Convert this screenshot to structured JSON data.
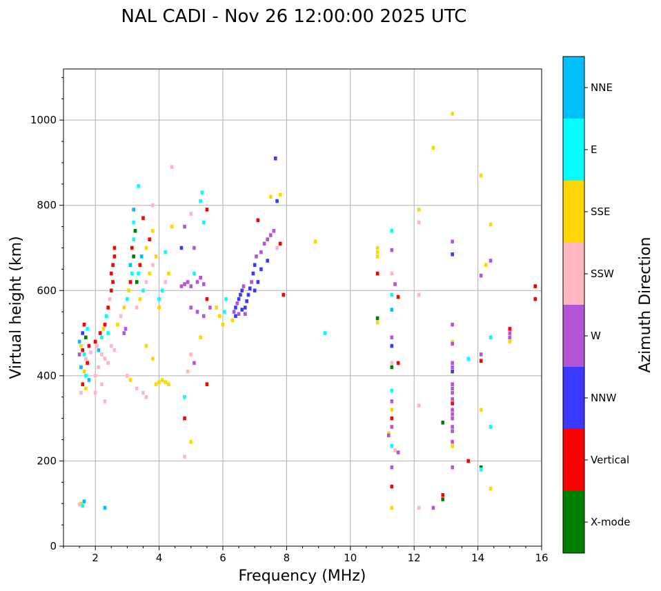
{
  "chart_data": {
    "type": "scatter",
    "title": "NAL CADI - Nov 26 12:00:00 2025 UTC",
    "xlabel": "Frequency (MHz)",
    "ylabel": "Virtual height (km)",
    "xlim": [
      1,
      16
    ],
    "ylim": [
      0,
      1120
    ],
    "xticks": [
      2,
      4,
      6,
      8,
      10,
      12,
      14,
      16
    ],
    "yticks": [
      0,
      200,
      400,
      600,
      800,
      1000
    ],
    "grid": true,
    "colorbar": {
      "title": "Azimuth Direction",
      "categories": [
        "X-mode",
        "Vertical",
        "NNW",
        "W",
        "SSW",
        "SSE",
        "E",
        "NNE"
      ],
      "colors": [
        "#008000",
        "#ff0000",
        "#3a3aff",
        "#b355d6",
        "#ffb6c1",
        "#ffd700",
        "#00ffff",
        "#00bfff"
      ]
    },
    "points": [
      {
        "f": 1.55,
        "h": 100,
        "c": 5
      },
      {
        "f": 1.6,
        "h": 95,
        "c": 6
      },
      {
        "f": 1.65,
        "h": 105,
        "c": 7
      },
      {
        "f": 1.5,
        "h": 98,
        "c": 4
      },
      {
        "f": 2.3,
        "h": 90,
        "c": 7
      },
      {
        "f": 1.5,
        "h": 480,
        "c": 7
      },
      {
        "f": 1.55,
        "h": 470,
        "c": 5
      },
      {
        "f": 1.6,
        "h": 460,
        "c": 1
      },
      {
        "f": 1.65,
        "h": 450,
        "c": 6
      },
      {
        "f": 1.7,
        "h": 440,
        "c": 4
      },
      {
        "f": 1.75,
        "h": 430,
        "c": 1
      },
      {
        "f": 1.6,
        "h": 500,
        "c": 2
      },
      {
        "f": 1.7,
        "h": 490,
        "c": 0
      },
      {
        "f": 1.8,
        "h": 470,
        "c": 1
      },
      {
        "f": 1.55,
        "h": 420,
        "c": 7
      },
      {
        "f": 1.65,
        "h": 410,
        "c": 5
      },
      {
        "f": 1.5,
        "h": 450,
        "c": 3
      },
      {
        "f": 1.75,
        "h": 510,
        "c": 6
      },
      {
        "f": 1.6,
        "h": 380,
        "c": 1
      },
      {
        "f": 1.7,
        "h": 370,
        "c": 5
      },
      {
        "f": 1.55,
        "h": 360,
        "c": 4
      },
      {
        "f": 1.8,
        "h": 390,
        "c": 7
      },
      {
        "f": 1.65,
        "h": 520,
        "c": 1
      },
      {
        "f": 1.85,
        "h": 455,
        "c": 4
      },
      {
        "f": 1.7,
        "h": 400,
        "c": 6
      },
      {
        "f": 2.0,
        "h": 480,
        "c": 1
      },
      {
        "f": 2.05,
        "h": 470,
        "c": 4
      },
      {
        "f": 2.1,
        "h": 460,
        "c": 7
      },
      {
        "f": 2.15,
        "h": 500,
        "c": 1
      },
      {
        "f": 2.2,
        "h": 490,
        "c": 6
      },
      {
        "f": 2.25,
        "h": 510,
        "c": 5
      },
      {
        "f": 2.3,
        "h": 520,
        "c": 1
      },
      {
        "f": 2.35,
        "h": 540,
        "c": 6
      },
      {
        "f": 2.4,
        "h": 560,
        "c": 1
      },
      {
        "f": 2.45,
        "h": 580,
        "c": 4
      },
      {
        "f": 2.5,
        "h": 600,
        "c": 1
      },
      {
        "f": 2.55,
        "h": 620,
        "c": 1
      },
      {
        "f": 2.5,
        "h": 640,
        "c": 1
      },
      {
        "f": 2.55,
        "h": 660,
        "c": 1
      },
      {
        "f": 2.6,
        "h": 680,
        "c": 1
      },
      {
        "f": 2.6,
        "h": 700,
        "c": 1
      },
      {
        "f": 2.2,
        "h": 450,
        "c": 4
      },
      {
        "f": 2.3,
        "h": 440,
        "c": 4
      },
      {
        "f": 2.4,
        "h": 430,
        "c": 4
      },
      {
        "f": 2.5,
        "h": 470,
        "c": 4
      },
      {
        "f": 2.6,
        "h": 460,
        "c": 4
      },
      {
        "f": 2.1,
        "h": 420,
        "c": 4
      },
      {
        "f": 2.0,
        "h": 400,
        "c": 4
      },
      {
        "f": 2.2,
        "h": 380,
        "c": 4
      },
      {
        "f": 2.3,
        "h": 340,
        "c": 4
      },
      {
        "f": 2.0,
        "h": 360,
        "c": 4
      },
      {
        "f": 2.4,
        "h": 500,
        "c": 6
      },
      {
        "f": 2.7,
        "h": 520,
        "c": 5
      },
      {
        "f": 2.8,
        "h": 540,
        "c": 4
      },
      {
        "f": 2.9,
        "h": 560,
        "c": 5
      },
      {
        "f": 2.9,
        "h": 500,
        "c": 3
      },
      {
        "f": 2.95,
        "h": 510,
        "c": 3
      },
      {
        "f": 3.0,
        "h": 580,
        "c": 6
      },
      {
        "f": 3.05,
        "h": 600,
        "c": 5
      },
      {
        "f": 3.1,
        "h": 620,
        "c": 1
      },
      {
        "f": 3.15,
        "h": 640,
        "c": 6
      },
      {
        "f": 3.1,
        "h": 660,
        "c": 7
      },
      {
        "f": 3.2,
        "h": 680,
        "c": 0
      },
      {
        "f": 3.15,
        "h": 700,
        "c": 1
      },
      {
        "f": 3.2,
        "h": 720,
        "c": 6
      },
      {
        "f": 3.25,
        "h": 740,
        "c": 0
      },
      {
        "f": 3.2,
        "h": 760,
        "c": 6
      },
      {
        "f": 3.2,
        "h": 790,
        "c": 7
      },
      {
        "f": 3.35,
        "h": 845,
        "c": 6
      },
      {
        "f": 3.3,
        "h": 560,
        "c": 4
      },
      {
        "f": 3.4,
        "h": 580,
        "c": 5
      },
      {
        "f": 3.5,
        "h": 600,
        "c": 6
      },
      {
        "f": 3.6,
        "h": 620,
        "c": 4
      },
      {
        "f": 3.7,
        "h": 640,
        "c": 5
      },
      {
        "f": 3.8,
        "h": 660,
        "c": 4
      },
      {
        "f": 3.9,
        "h": 680,
        "c": 5
      },
      {
        "f": 3.6,
        "h": 700,
        "c": 5
      },
      {
        "f": 3.7,
        "h": 720,
        "c": 1
      },
      {
        "f": 3.8,
        "h": 740,
        "c": 5
      },
      {
        "f": 3.5,
        "h": 770,
        "c": 1
      },
      {
        "f": 3.8,
        "h": 800,
        "c": 4
      },
      {
        "f": 3.3,
        "h": 620,
        "c": 0
      },
      {
        "f": 3.35,
        "h": 640,
        "c": 6
      },
      {
        "f": 3.4,
        "h": 660,
        "c": 1
      },
      {
        "f": 3.45,
        "h": 680,
        "c": 7
      },
      {
        "f": 3.0,
        "h": 400,
        "c": 4
      },
      {
        "f": 3.1,
        "h": 390,
        "c": 5
      },
      {
        "f": 3.3,
        "h": 370,
        "c": 4
      },
      {
        "f": 3.5,
        "h": 360,
        "c": 4
      },
      {
        "f": 3.6,
        "h": 350,
        "c": 4
      },
      {
        "f": 3.8,
        "h": 440,
        "c": 5
      },
      {
        "f": 3.9,
        "h": 380,
        "c": 5
      },
      {
        "f": 4.0,
        "h": 385,
        "c": 5
      },
      {
        "f": 4.1,
        "h": 390,
        "c": 5
      },
      {
        "f": 4.2,
        "h": 385,
        "c": 5
      },
      {
        "f": 4.3,
        "h": 380,
        "c": 5
      },
      {
        "f": 3.6,
        "h": 470,
        "c": 5
      },
      {
        "f": 4.0,
        "h": 580,
        "c": 6
      },
      {
        "f": 4.1,
        "h": 600,
        "c": 6
      },
      {
        "f": 4.2,
        "h": 620,
        "c": 4
      },
      {
        "f": 4.3,
        "h": 640,
        "c": 5
      },
      {
        "f": 4.0,
        "h": 560,
        "c": 5
      },
      {
        "f": 4.2,
        "h": 690,
        "c": 6
      },
      {
        "f": 4.4,
        "h": 750,
        "c": 5
      },
      {
        "f": 4.4,
        "h": 890,
        "c": 4
      },
      {
        "f": 4.7,
        "h": 610,
        "c": 3
      },
      {
        "f": 4.8,
        "h": 615,
        "c": 3
      },
      {
        "f": 4.9,
        "h": 620,
        "c": 3
      },
      {
        "f": 5.0,
        "h": 610,
        "c": 3
      },
      {
        "f": 5.1,
        "h": 640,
        "c": 6
      },
      {
        "f": 5.2,
        "h": 620,
        "c": 3
      },
      {
        "f": 5.3,
        "h": 630,
        "c": 3
      },
      {
        "f": 5.4,
        "h": 615,
        "c": 3
      },
      {
        "f": 5.1,
        "h": 700,
        "c": 3
      },
      {
        "f": 4.8,
        "h": 750,
        "c": 3
      },
      {
        "f": 5.0,
        "h": 780,
        "c": 4
      },
      {
        "f": 5.3,
        "h": 810,
        "c": 6
      },
      {
        "f": 5.5,
        "h": 790,
        "c": 1
      },
      {
        "f": 5.35,
        "h": 830,
        "c": 6
      },
      {
        "f": 4.7,
        "h": 700,
        "c": 2
      },
      {
        "f": 5.4,
        "h": 760,
        "c": 6
      },
      {
        "f": 5.0,
        "h": 560,
        "c": 3
      },
      {
        "f": 5.2,
        "h": 550,
        "c": 3
      },
      {
        "f": 5.4,
        "h": 540,
        "c": 3
      },
      {
        "f": 5.6,
        "h": 560,
        "c": 3
      },
      {
        "f": 5.5,
        "h": 580,
        "c": 1
      },
      {
        "f": 5.8,
        "h": 560,
        "c": 5
      },
      {
        "f": 5.9,
        "h": 540,
        "c": 5
      },
      {
        "f": 6.0,
        "h": 520,
        "c": 5
      },
      {
        "f": 6.05,
        "h": 550,
        "c": 6
      },
      {
        "f": 6.1,
        "h": 580,
        "c": 6
      },
      {
        "f": 5.3,
        "h": 490,
        "c": 5
      },
      {
        "f": 5.1,
        "h": 430,
        "c": 3
      },
      {
        "f": 4.9,
        "h": 410,
        "c": 4
      },
      {
        "f": 5.0,
        "h": 450,
        "c": 4
      },
      {
        "f": 4.8,
        "h": 350,
        "c": 6
      },
      {
        "f": 5.5,
        "h": 380,
        "c": 1
      },
      {
        "f": 4.8,
        "h": 300,
        "c": 1
      },
      {
        "f": 5.0,
        "h": 245,
        "c": 5
      },
      {
        "f": 4.8,
        "h": 210,
        "c": 4
      },
      {
        "f": 6.3,
        "h": 530,
        "c": 5
      },
      {
        "f": 6.35,
        "h": 550,
        "c": 3
      },
      {
        "f": 6.4,
        "h": 560,
        "c": 2
      },
      {
        "f": 6.45,
        "h": 570,
        "c": 3
      },
      {
        "f": 6.5,
        "h": 580,
        "c": 2
      },
      {
        "f": 6.55,
        "h": 590,
        "c": 2
      },
      {
        "f": 6.6,
        "h": 600,
        "c": 2
      },
      {
        "f": 6.65,
        "h": 610,
        "c": 3
      },
      {
        "f": 6.7,
        "h": 560,
        "c": 2
      },
      {
        "f": 6.75,
        "h": 575,
        "c": 2
      },
      {
        "f": 6.8,
        "h": 590,
        "c": 2
      },
      {
        "f": 6.85,
        "h": 605,
        "c": 2
      },
      {
        "f": 6.9,
        "h": 620,
        "c": 3
      },
      {
        "f": 6.95,
        "h": 640,
        "c": 2
      },
      {
        "f": 7.0,
        "h": 660,
        "c": 2
      },
      {
        "f": 7.05,
        "h": 680,
        "c": 3
      },
      {
        "f": 6.4,
        "h": 540,
        "c": 2
      },
      {
        "f": 6.5,
        "h": 545,
        "c": 3
      },
      {
        "f": 6.6,
        "h": 555,
        "c": 2
      },
      {
        "f": 6.7,
        "h": 545,
        "c": 3
      },
      {
        "f": 7.0,
        "h": 600,
        "c": 2
      },
      {
        "f": 7.1,
        "h": 620,
        "c": 2
      },
      {
        "f": 7.2,
        "h": 690,
        "c": 3
      },
      {
        "f": 7.3,
        "h": 710,
        "c": 3
      },
      {
        "f": 7.4,
        "h": 720,
        "c": 3
      },
      {
        "f": 7.5,
        "h": 730,
        "c": 3
      },
      {
        "f": 7.6,
        "h": 740,
        "c": 3
      },
      {
        "f": 7.7,
        "h": 700,
        "c": 4
      },
      {
        "f": 7.8,
        "h": 710,
        "c": 1
      },
      {
        "f": 7.1,
        "h": 765,
        "c": 1
      },
      {
        "f": 7.5,
        "h": 820,
        "c": 5
      },
      {
        "f": 7.7,
        "h": 810,
        "c": 2
      },
      {
        "f": 7.8,
        "h": 825,
        "c": 5
      },
      {
        "f": 7.65,
        "h": 910,
        "c": 2
      },
      {
        "f": 7.9,
        "h": 590,
        "c": 1
      },
      {
        "f": 8.9,
        "h": 715,
        "c": 5
      },
      {
        "f": 9.2,
        "h": 500,
        "c": 6
      },
      {
        "f": 7.4,
        "h": 670,
        "c": 2
      },
      {
        "f": 7.2,
        "h": 650,
        "c": 2
      },
      {
        "f": 10.85,
        "h": 700,
        "c": 5
      },
      {
        "f": 10.85,
        "h": 690,
        "c": 5
      },
      {
        "f": 10.85,
        "h": 680,
        "c": 5
      },
      {
        "f": 10.85,
        "h": 640,
        "c": 1
      },
      {
        "f": 10.85,
        "h": 535,
        "c": 0
      },
      {
        "f": 10.85,
        "h": 525,
        "c": 5
      },
      {
        "f": 11.3,
        "h": 740,
        "c": 6
      },
      {
        "f": 11.3,
        "h": 695,
        "c": 3
      },
      {
        "f": 11.3,
        "h": 640,
        "c": 4
      },
      {
        "f": 11.4,
        "h": 615,
        "c": 3
      },
      {
        "f": 11.3,
        "h": 590,
        "c": 6
      },
      {
        "f": 11.5,
        "h": 585,
        "c": 1
      },
      {
        "f": 11.3,
        "h": 555,
        "c": 7
      },
      {
        "f": 11.3,
        "h": 490,
        "c": 3
      },
      {
        "f": 11.3,
        "h": 470,
        "c": 2
      },
      {
        "f": 11.3,
        "h": 430,
        "c": 4
      },
      {
        "f": 11.3,
        "h": 420,
        "c": 0
      },
      {
        "f": 11.5,
        "h": 430,
        "c": 1
      },
      {
        "f": 11.3,
        "h": 365,
        "c": 6
      },
      {
        "f": 11.3,
        "h": 340,
        "c": 3
      },
      {
        "f": 11.3,
        "h": 320,
        "c": 5
      },
      {
        "f": 11.3,
        "h": 300,
        "c": 1
      },
      {
        "f": 11.3,
        "h": 280,
        "c": 3
      },
      {
        "f": 11.2,
        "h": 265,
        "c": 5
      },
      {
        "f": 11.2,
        "h": 260,
        "c": 3
      },
      {
        "f": 11.3,
        "h": 235,
        "c": 6
      },
      {
        "f": 11.4,
        "h": 225,
        "c": 4
      },
      {
        "f": 11.5,
        "h": 220,
        "c": 3
      },
      {
        "f": 11.3,
        "h": 185,
        "c": 3
      },
      {
        "f": 11.3,
        "h": 140,
        "c": 1
      },
      {
        "f": 11.3,
        "h": 90,
        "c": 5
      },
      {
        "f": 12.15,
        "h": 790,
        "c": 5
      },
      {
        "f": 12.15,
        "h": 760,
        "c": 4
      },
      {
        "f": 12.15,
        "h": 590,
        "c": 4
      },
      {
        "f": 12.15,
        "h": 330,
        "c": 4
      },
      {
        "f": 12.15,
        "h": 90,
        "c": 4
      },
      {
        "f": 12.6,
        "h": 935,
        "c": 5
      },
      {
        "f": 12.6,
        "h": 90,
        "c": 3
      },
      {
        "f": 13.2,
        "h": 1015,
        "c": 5
      },
      {
        "f": 13.2,
        "h": 715,
        "c": 3
      },
      {
        "f": 13.2,
        "h": 685,
        "c": 2
      },
      {
        "f": 13.2,
        "h": 520,
        "c": 3
      },
      {
        "f": 13.2,
        "h": 480,
        "c": 5
      },
      {
        "f": 13.2,
        "h": 475,
        "c": 3
      },
      {
        "f": 13.2,
        "h": 430,
        "c": 3
      },
      {
        "f": 13.2,
        "h": 420,
        "c": 3
      },
      {
        "f": 13.2,
        "h": 410,
        "c": 2
      },
      {
        "f": 13.2,
        "h": 380,
        "c": 3
      },
      {
        "f": 13.2,
        "h": 370,
        "c": 3
      },
      {
        "f": 13.2,
        "h": 360,
        "c": 3
      },
      {
        "f": 13.2,
        "h": 345,
        "c": 3
      },
      {
        "f": 13.2,
        "h": 335,
        "c": 1
      },
      {
        "f": 13.2,
        "h": 320,
        "c": 3
      },
      {
        "f": 13.2,
        "h": 310,
        "c": 3
      },
      {
        "f": 13.2,
        "h": 300,
        "c": 3
      },
      {
        "f": 13.2,
        "h": 280,
        "c": 3
      },
      {
        "f": 13.2,
        "h": 270,
        "c": 3
      },
      {
        "f": 13.2,
        "h": 245,
        "c": 3
      },
      {
        "f": 13.2,
        "h": 235,
        "c": 5
      },
      {
        "f": 13.2,
        "h": 185,
        "c": 3
      },
      {
        "f": 12.9,
        "h": 290,
        "c": 0
      },
      {
        "f": 12.9,
        "h": 120,
        "c": 1
      },
      {
        "f": 12.9,
        "h": 110,
        "c": 0
      },
      {
        "f": 13.7,
        "h": 440,
        "c": 6
      },
      {
        "f": 13.7,
        "h": 200,
        "c": 1
      },
      {
        "f": 14.1,
        "h": 870,
        "c": 5
      },
      {
        "f": 14.4,
        "h": 755,
        "c": 5
      },
      {
        "f": 14.4,
        "h": 670,
        "c": 3
      },
      {
        "f": 14.25,
        "h": 660,
        "c": 5
      },
      {
        "f": 14.1,
        "h": 635,
        "c": 3
      },
      {
        "f": 14.4,
        "h": 490,
        "c": 6
      },
      {
        "f": 14.1,
        "h": 450,
        "c": 3
      },
      {
        "f": 14.1,
        "h": 435,
        "c": 1
      },
      {
        "f": 14.1,
        "h": 320,
        "c": 5
      },
      {
        "f": 14.4,
        "h": 280,
        "c": 6
      },
      {
        "f": 14.1,
        "h": 185,
        "c": 0
      },
      {
        "f": 14.1,
        "h": 180,
        "c": 6
      },
      {
        "f": 14.4,
        "h": 135,
        "c": 5
      },
      {
        "f": 15.0,
        "h": 510,
        "c": 1
      },
      {
        "f": 15.0,
        "h": 500,
        "c": 3
      },
      {
        "f": 15.0,
        "h": 490,
        "c": 3
      },
      {
        "f": 15.0,
        "h": 480,
        "c": 5
      },
      {
        "f": 15.8,
        "h": 610,
        "c": 1
      },
      {
        "f": 15.8,
        "h": 580,
        "c": 1
      }
    ]
  }
}
